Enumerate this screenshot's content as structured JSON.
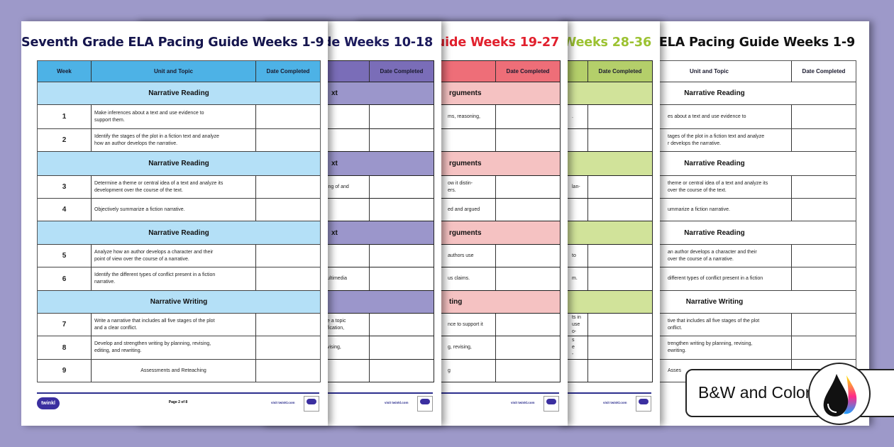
{
  "pages": [
    {
      "title": "Seventh Grade ELA Pacing Guide Weeks 1-9",
      "headers": {
        "week": "Week",
        "topic": "Unit and Topic",
        "date": "Date Completed"
      },
      "sections": [
        {
          "title": "Narrative Reading",
          "rows": [
            {
              "week": "1",
              "topic": "Make inferences about a text and use evidence to\nsupport them."
            },
            {
              "week": "2",
              "topic": "Identify the stages of the plot in a fiction text and analyze\nhow an author develops the narrative."
            }
          ]
        },
        {
          "title": "Narrative Reading",
          "rows": [
            {
              "week": "3",
              "topic": "Determine a theme or central idea of a text and analyze its\ndevelopment over the course of the text."
            },
            {
              "week": "4",
              "topic": "Objectively summarize a fiction narrative."
            }
          ]
        },
        {
          "title": "Narrative Reading",
          "rows": [
            {
              "week": "5",
              "topic": "Analyze how an author develops a character and their\npoint of view over the course of a narrative."
            },
            {
              "week": "6",
              "topic": "Identify the different types of conflict present in a fiction\nnarrative."
            }
          ]
        },
        {
          "title": "Narrative Writing",
          "rows": [
            {
              "week": "7",
              "topic": "Write a narrative that includes all five stages of the plot\nand a clear conflict."
            },
            {
              "week": "8",
              "topic": "Develop and strengthen writing by planning, revising,\nediting, and rewriting."
            },
            {
              "week": "9",
              "topic": "Assessments and Reteaching"
            }
          ]
        }
      ],
      "footer": {
        "logo": "twinkl",
        "page": "Page 2 of 8",
        "site": "visit twinkl.com"
      }
    },
    {
      "title": "ide Weeks 10-18",
      "headers": {
        "week": "",
        "topic": "",
        "date": "Date Completed"
      },
      "sections": [
        {
          "title": "xt",
          "rows": [
            {
              "week": "",
              "topic": ""
            },
            {
              "week": "",
              "topic": ""
            }
          ]
        },
        {
          "title": "xt",
          "rows": [
            {
              "week": "",
              "topic": "ing of and"
            },
            {
              "week": "",
              "topic": ""
            }
          ]
        },
        {
          "title": "xt",
          "rows": [
            {
              "week": "",
              "topic": ""
            },
            {
              "week": "",
              "topic": "ultimedia"
            }
          ]
        },
        {
          "title": "",
          "rows": [
            {
              "week": "",
              "topic": "e a topic\nfication,"
            },
            {
              "week": "",
              "topic": "vising,"
            },
            {
              "week": "",
              "topic": ""
            }
          ]
        }
      ],
      "footer": {
        "site": "visit twinkl.com"
      }
    },
    {
      "title": "Guide Weeks 19-27",
      "headers": {
        "week": "",
        "topic": "",
        "date": "Date Completed"
      },
      "sections": [
        {
          "title": "rguments",
          "rows": [
            {
              "week": "",
              "topic": "ms, reasoning,"
            },
            {
              "week": "",
              "topic": ""
            }
          ]
        },
        {
          "title": "rguments",
          "rows": [
            {
              "week": "",
              "topic": "ow it distin-\ners."
            },
            {
              "week": "",
              "topic": "ed and argued"
            }
          ]
        },
        {
          "title": "rguments",
          "rows": [
            {
              "week": "",
              "topic": "authors use"
            },
            {
              "week": "",
              "topic": "us claims."
            }
          ]
        },
        {
          "title": "ting",
          "rows": [
            {
              "week": "",
              "topic": "nce to support it"
            },
            {
              "week": "",
              "topic": "g, revising,"
            },
            {
              "week": "",
              "topic": "g"
            }
          ]
        }
      ],
      "footer": {
        "site": "visit twinkl.com"
      }
    },
    {
      "title": "Weeks 28-36",
      "headers": {
        "week": "",
        "topic": "",
        "date": "Date Completed"
      },
      "sections": [
        {
          "title": "",
          "rows": [
            {
              "week": "",
              "topic": "."
            },
            {
              "week": "",
              "topic": ""
            }
          ]
        },
        {
          "title": "",
          "rows": [
            {
              "week": "",
              "topic": "lan-"
            },
            {
              "week": "",
              "topic": ""
            }
          ]
        },
        {
          "title": "",
          "rows": [
            {
              "week": "",
              "topic": "to"
            },
            {
              "week": "",
              "topic": "m."
            }
          ]
        },
        {
          "title": "",
          "rows": [
            {
              "week": "",
              "topic": "ts in\nuse\no-"
            },
            {
              "week": "",
              "topic": "s\ne\n-"
            },
            {
              "week": "",
              "topic": ""
            }
          ]
        }
      ],
      "footer": {
        "site": "visit twinkl.com"
      }
    },
    {
      "title": "ELA Pacing Guide Weeks 1-9",
      "headers": {
        "week": "",
        "topic": "Unit and Topic",
        "date": "Date Completed"
      },
      "sections": [
        {
          "title": "Narrative Reading",
          "rows": [
            {
              "week": "",
              "topic": "es about a text and use evidence to"
            },
            {
              "week": "",
              "topic": "tages of the plot in a fiction text and analyze\nr develops the narrative."
            }
          ]
        },
        {
          "title": "Narrative Reading",
          "rows": [
            {
              "week": "",
              "topic": "theme or central idea of a text and analyze its\nover the course of the text."
            },
            {
              "week": "",
              "topic": "ummarize a fiction narrative."
            }
          ]
        },
        {
          "title": "Narrative Reading",
          "rows": [
            {
              "week": "",
              "topic": "an author develops a character and their\nover the course of a narrative."
            },
            {
              "week": "",
              "topic": "different types of conflict present in a fiction"
            }
          ]
        },
        {
          "title": "Narrative Writing",
          "rows": [
            {
              "week": "",
              "topic": "tive that includes all five stages of the plot\nonflict."
            },
            {
              "week": "",
              "topic": "trengthen writing by planning, revising,\newriting."
            },
            {
              "week": "",
              "topic": "Asses"
            }
          ]
        }
      ],
      "footer": {}
    }
  ],
  "badge": {
    "label": "B&W and Color",
    "icon": "ink-drops-icon"
  },
  "colors": {
    "background": "#9d99c9",
    "blue": "#4db2e6",
    "purple": "#7a6db8",
    "red": "#ee6e78",
    "green": "#b4cf6a"
  }
}
